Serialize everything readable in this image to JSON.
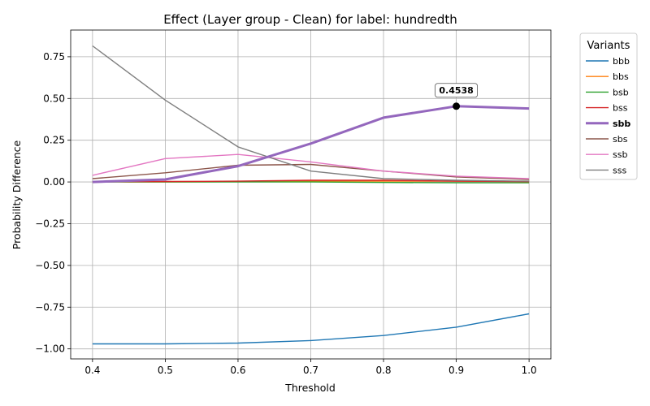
{
  "chart_data": {
    "type": "line",
    "title": "Effect (Layer group - Clean) for label: hundredth",
    "xlabel": "Threshold",
    "ylabel": "Probability Difference",
    "x": [
      0.4,
      0.5,
      0.6,
      0.7,
      0.8,
      0.9,
      1.0
    ],
    "xlim": [
      0.37,
      1.03
    ],
    "ylim": [
      -1.06,
      0.91
    ],
    "xticks": [
      0.4,
      0.5,
      0.6,
      0.7,
      0.8,
      0.9,
      1.0
    ],
    "xtick_labels": [
      "0.4",
      "0.5",
      "0.6",
      "0.7",
      "0.8",
      "0.9",
      "1.0"
    ],
    "yticks": [
      0.75,
      0.5,
      0.25,
      0.0,
      -0.25,
      -0.5,
      -0.75,
      -1.0
    ],
    "ytick_labels": [
      "0.75",
      "0.50",
      "0.25",
      "0.00",
      "−0.25",
      "−0.50",
      "−0.75",
      "−1.00"
    ],
    "grid": true,
    "legend": {
      "title": "Variants",
      "placement": "outside-right"
    },
    "series": [
      {
        "name": "bbb",
        "color": "#1f77b4",
        "highlight": false,
        "values": [
          -0.97,
          -0.97,
          -0.965,
          -0.95,
          -0.92,
          -0.87,
          -0.79
        ]
      },
      {
        "name": "bbs",
        "color": "#ff7f0e",
        "highlight": false,
        "values": [
          0.0,
          0.0,
          0.002,
          0.005,
          0.005,
          0.005,
          0.003
        ]
      },
      {
        "name": "bsb",
        "color": "#2ca02c",
        "highlight": false,
        "values": [
          0.0,
          0.0,
          0.0,
          0.0,
          -0.003,
          -0.005,
          -0.005
        ]
      },
      {
        "name": "bss",
        "color": "#d62728",
        "highlight": false,
        "values": [
          0.002,
          0.003,
          0.005,
          0.01,
          0.01,
          0.005,
          0.002
        ]
      },
      {
        "name": "sbb",
        "color": "#9467bd",
        "highlight": true,
        "values": [
          0.0,
          0.015,
          0.095,
          0.23,
          0.385,
          0.4538,
          0.44
        ]
      },
      {
        "name": "sbs",
        "color": "#8c564b",
        "highlight": false,
        "values": [
          0.02,
          0.055,
          0.1,
          0.105,
          0.065,
          0.03,
          0.015
        ]
      },
      {
        "name": "ssb",
        "color": "#e377c2",
        "highlight": false,
        "values": [
          0.04,
          0.14,
          0.165,
          0.12,
          0.065,
          0.035,
          0.02
        ]
      },
      {
        "name": "sss",
        "color": "#7f7f7f",
        "highlight": false,
        "values": [
          0.815,
          0.49,
          0.21,
          0.065,
          0.02,
          0.01,
          0.005
        ]
      }
    ],
    "annotation": {
      "series": "sbb",
      "x": 0.9,
      "y": 0.4538,
      "text": "0.4538"
    }
  }
}
